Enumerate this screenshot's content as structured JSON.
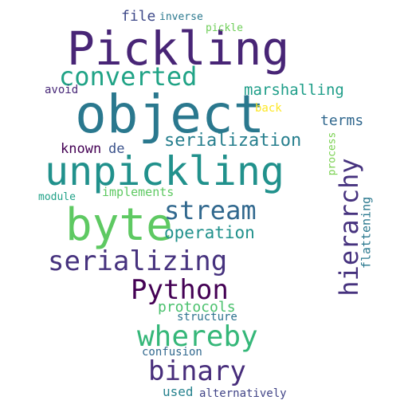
{
  "words": {
    "pickling": {
      "text": "Pickling",
      "color": "#482576"
    },
    "object": {
      "text": "object",
      "color": "#2a788e"
    },
    "unpickling": {
      "text": "unpickling",
      "color": "#21918c"
    },
    "byte": {
      "text": "byte",
      "color": "#5ec962"
    },
    "converted": {
      "text": "converted",
      "color": "#20a386"
    },
    "stream": {
      "text": "stream",
      "color": "#31688e"
    },
    "serializing": {
      "text": "serializing",
      "color": "#46327e"
    },
    "python": {
      "text": "Python",
      "color": "#440154"
    },
    "whereby": {
      "text": "whereby",
      "color": "#35b779"
    },
    "binary": {
      "text": "binary",
      "color": "#472d7b"
    },
    "hierarchy": {
      "text": "hierarchy",
      "color": "#46327e"
    },
    "serialization": {
      "text": "serialization",
      "color": "#277f8e"
    },
    "operation": {
      "text": "operation",
      "color": "#21918c"
    },
    "marshalling": {
      "text": "marshalling",
      "color": "#1f9e89"
    },
    "terms": {
      "text": "terms",
      "color": "#31688e"
    },
    "known": {
      "text": "known",
      "color": "#440154"
    },
    "de": {
      "text": "de",
      "color": "#3b528b"
    },
    "file": {
      "text": "file",
      "color": "#3e4989"
    },
    "inverse": {
      "text": "inverse",
      "color": "#2a788e"
    },
    "pickle": {
      "text": "pickle",
      "color": "#6ece58"
    },
    "avoid": {
      "text": "avoid",
      "color": "#482878"
    },
    "back": {
      "text": "back",
      "color": "#fde725"
    },
    "implements": {
      "text": "implements",
      "color": "#5ec962"
    },
    "module": {
      "text": "module",
      "color": "#1fa187"
    },
    "process": {
      "text": "process",
      "color": "#7ad151"
    },
    "flattening": {
      "text": "flattening",
      "color": "#2a788e"
    },
    "protocols": {
      "text": "protocols",
      "color": "#4ac16d"
    },
    "structure": {
      "text": "structure",
      "color": "#2c728e"
    },
    "confusion": {
      "text": "confusion",
      "color": "#31688e"
    },
    "used": {
      "text": "used",
      "color": "#26828e"
    },
    "alternatively": {
      "text": "alternatively",
      "color": "#414487"
    }
  }
}
